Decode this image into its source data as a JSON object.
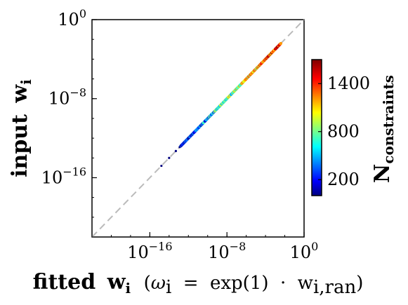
{
  "chart_data": {
    "type": "scatter",
    "xlabel": {
      "prefix": "fitted",
      "symbol": "w",
      "subscript": "i",
      "note_open": "(",
      "omega": "ω",
      "omega_sub": "i",
      "equals": "=",
      "func": "exp(1)",
      "dot": "·",
      "w_ran": "w",
      "w_ran_sub": "i,ran",
      "note_close": ")"
    },
    "ylabel": {
      "prefix": "input",
      "symbol": "w",
      "subscript": "i"
    },
    "xscale": "log",
    "yscale": "log",
    "xlim": [
      1e-22,
      1
    ],
    "ylim": [
      1e-22,
      1
    ],
    "x_ticks": [
      {
        "base": "10",
        "exp": "−16",
        "value": 1e-16
      },
      {
        "base": "10",
        "exp": "−8",
        "value": 1e-08
      },
      {
        "base": "10",
        "exp": "0",
        "value": 1
      }
    ],
    "y_ticks": [
      {
        "base": "10",
        "exp": "−16",
        "value": 1e-16
      },
      {
        "base": "10",
        "exp": "−8",
        "value": 1e-08
      },
      {
        "base": "10",
        "exp": "0",
        "value": 1
      }
    ],
    "reference_line": "y = x (dashed, light gray)",
    "points_log10_range": [
      -14.8,
      -2.4
    ],
    "colorbar": {
      "label": "N",
      "label_subscript": "constraints",
      "colormap": "jet",
      "range": [
        0,
        1700
      ],
      "ticks": [
        {
          "label": "200",
          "value": 200
        },
        {
          "label": "800",
          "value": 800
        },
        {
          "label": "1400",
          "value": 1400
        }
      ],
      "placement": "right"
    },
    "grid": false,
    "legend": "none"
  },
  "colors": {
    "axis": "#000000",
    "reference_line": "#bbbbbb",
    "jet_stops": [
      "#00007f",
      "#0000ff",
      "#00ffff",
      "#ffff00",
      "#ff0000",
      "#7f0000"
    ]
  }
}
